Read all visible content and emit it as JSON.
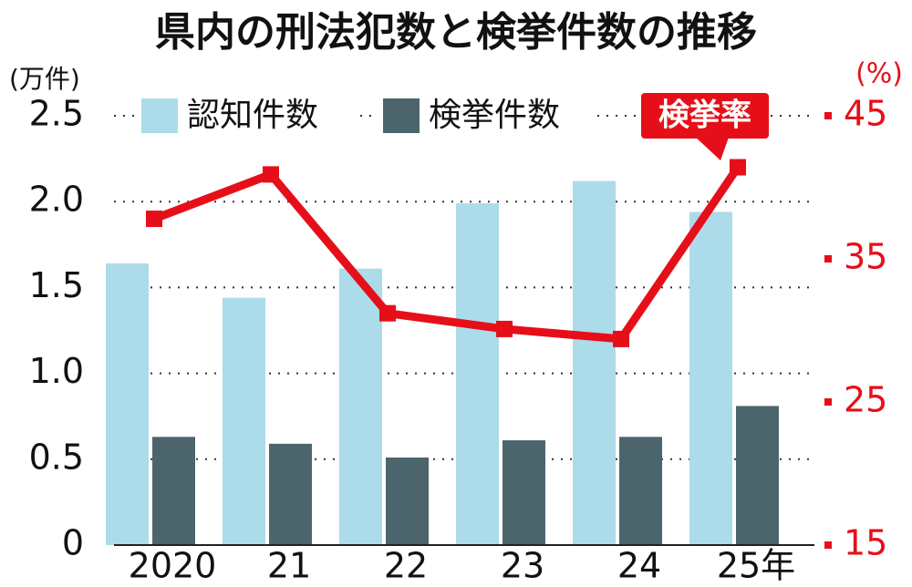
{
  "chart_data": {
    "type": "bar",
    "title": "県内の刑法犯数と検挙件数の推移",
    "y_label": "(万件)",
    "y2_label": "(%)",
    "categories": [
      "2020",
      "21",
      "22",
      "23",
      "24",
      "25年"
    ],
    "series": [
      {
        "name": "認知件数",
        "color": "#acdbea",
        "values": [
          1.64,
          1.44,
          1.61,
          1.99,
          2.12,
          1.94
        ]
      },
      {
        "name": "検挙件数",
        "color": "#4c656d",
        "values": [
          0.63,
          0.59,
          0.51,
          0.61,
          0.63,
          0.81
        ]
      },
      {
        "name": "検挙率",
        "color": "#e60f19",
        "type": "line",
        "axis": "y2",
        "values": [
          37.8,
          40.9,
          31.2,
          30.1,
          29.4,
          41.4
        ]
      }
    ],
    "ylim": [
      0,
      2.5
    ],
    "yticks": [
      0,
      0.5,
      {
        "value": 1,
        "label": "1.0"
      },
      1.5,
      {
        "value": 2,
        "label": "2.0"
      },
      2.5
    ],
    "y2lim": [
      15,
      45
    ],
    "y2ticks": [
      15,
      25,
      35,
      45
    ],
    "grid": true
  }
}
